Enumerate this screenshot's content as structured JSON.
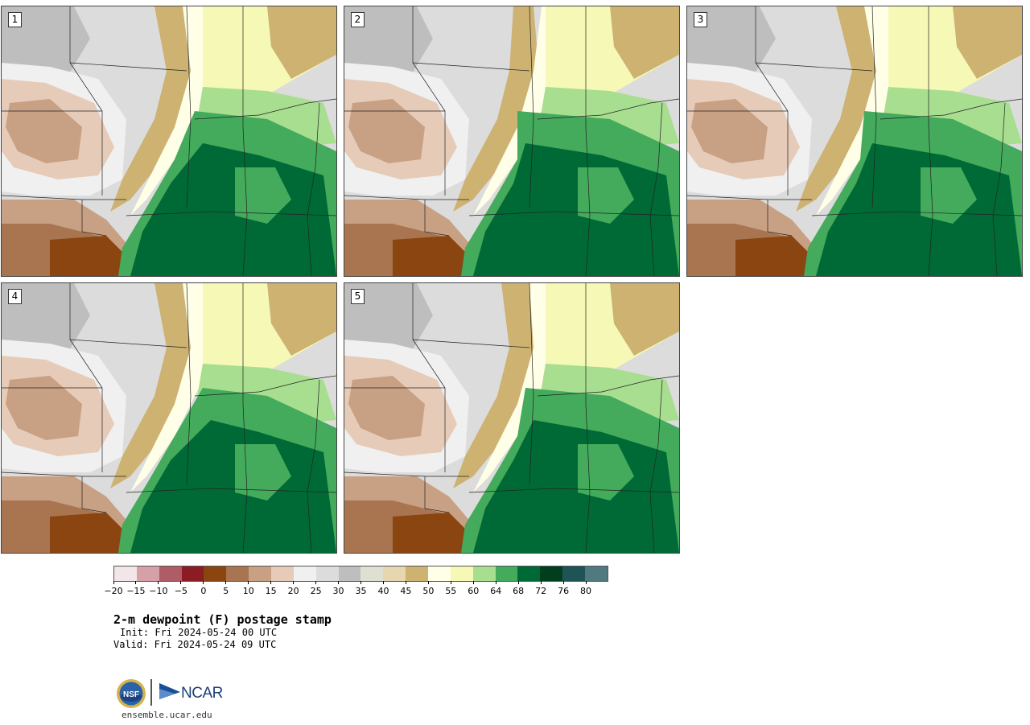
{
  "panels": [
    {
      "label": "1"
    },
    {
      "label": "2"
    },
    {
      "label": "3"
    },
    {
      "label": "4"
    },
    {
      "label": "5"
    }
  ],
  "colorbar": {
    "colors": [
      "#f3e6e8",
      "#d6a0a8",
      "#b05c66",
      "#8c1c24",
      "#8a4510",
      "#a87550",
      "#c8a084",
      "#e6cbb8",
      "#f0f0f0",
      "#dcdcdc",
      "#bebebe",
      "#e0e0d2",
      "#e6d7b0",
      "#cdb272",
      "#fffee6",
      "#f6f8b6",
      "#a8de90",
      "#44aa5c",
      "#006a36",
      "#003e1e",
      "#1e5458",
      "#507a80"
    ],
    "tick_labels": [
      "−20",
      "−15",
      "−10",
      "−5",
      "0",
      "5",
      "10",
      "15",
      "20",
      "25",
      "30",
      "35",
      "40",
      "45",
      "50",
      "55",
      "60",
      "64",
      "68",
      "72",
      "76",
      "80"
    ]
  },
  "title": "2-m dewpoint (F) postage stamp",
  "init": "Init: Fri 2024-05-24 00 UTC",
  "valid": "Valid: Fri 2024-05-24 09 UTC",
  "logos": {
    "nsf": "NSF",
    "ncar": "NCAR"
  },
  "site": "ensemble.ucar.edu"
}
